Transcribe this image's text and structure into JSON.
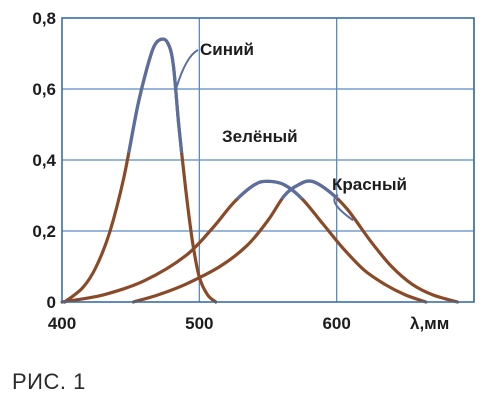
{
  "figure_caption": "РИС. 1",
  "chart_data": {
    "type": "line",
    "xlabel": "λ,мм",
    "ylabel": "",
    "xlim": [
      400,
      700
    ],
    "ylim": [
      0,
      0.8
    ],
    "x_ticks": [
      "400",
      "500",
      "600"
    ],
    "y_ticks": [
      "0",
      "0,2",
      "0,4",
      "0,6",
      "0,8"
    ],
    "x_tick_values": [
      400,
      500,
      600
    ],
    "y_tick_values": [
      0,
      0.2,
      0.4,
      0.6,
      0.8
    ],
    "grid": true,
    "series": [
      {
        "name": "Синий",
        "colors": {
          "line": "#8a4a28",
          "highlight": "#5a6f9f"
        },
        "points": [
          [
            402,
            0
          ],
          [
            415,
            0.04
          ],
          [
            425,
            0.1
          ],
          [
            435,
            0.2
          ],
          [
            445,
            0.35
          ],
          [
            455,
            0.55
          ],
          [
            462,
            0.66
          ],
          [
            467,
            0.72
          ],
          [
            472,
            0.74
          ],
          [
            477,
            0.73
          ],
          [
            481,
            0.67
          ],
          [
            485,
            0.5
          ],
          [
            490,
            0.32
          ],
          [
            495,
            0.17
          ],
          [
            500,
            0.07
          ],
          [
            506,
            0.02
          ],
          [
            512,
            0.0
          ]
        ]
      },
      {
        "name": "Зелёный",
        "colors": {
          "line": "#8a4a28",
          "highlight": "#5a6f9f"
        },
        "points": [
          [
            400,
            0
          ],
          [
            430,
            0.02
          ],
          [
            460,
            0.06
          ],
          [
            490,
            0.13
          ],
          [
            510,
            0.21
          ],
          [
            525,
            0.28
          ],
          [
            540,
            0.33
          ],
          [
            550,
            0.34
          ],
          [
            562,
            0.33
          ],
          [
            575,
            0.29
          ],
          [
            590,
            0.22
          ],
          [
            605,
            0.15
          ],
          [
            620,
            0.09
          ],
          [
            635,
            0.05
          ],
          [
            650,
            0.02
          ],
          [
            665,
            0.0
          ]
        ]
      },
      {
        "name": "Красный",
        "colors": {
          "line": "#8a4a28",
          "highlight": "#5a6f9f"
        },
        "points": [
          [
            452,
            0
          ],
          [
            470,
            0.02
          ],
          [
            490,
            0.05
          ],
          [
            515,
            0.1
          ],
          [
            535,
            0.16
          ],
          [
            550,
            0.23
          ],
          [
            562,
            0.3
          ],
          [
            572,
            0.33
          ],
          [
            582,
            0.34
          ],
          [
            595,
            0.31
          ],
          [
            608,
            0.26
          ],
          [
            625,
            0.17
          ],
          [
            640,
            0.1
          ],
          [
            655,
            0.05
          ],
          [
            670,
            0.02
          ],
          [
            688,
            0.0
          ]
        ]
      }
    ]
  }
}
